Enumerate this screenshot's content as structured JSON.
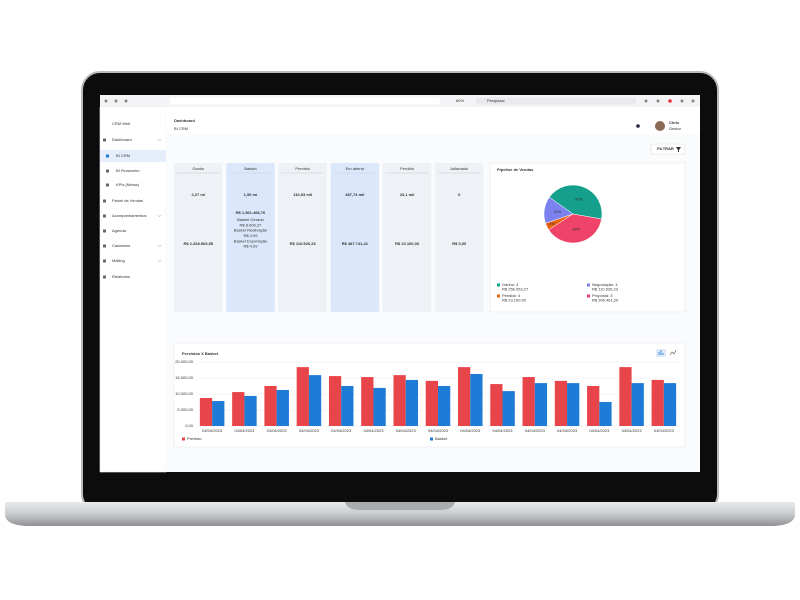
{
  "browser": {
    "zoom": "80%",
    "search": "Pesquisar"
  },
  "sidebar": {
    "brand": "CRM Web",
    "items": [
      "Dashboard",
      "BI CRM",
      "BI Financeiro",
      "KPIs (Metas)",
      "Painel de Vendas",
      "Acompanhamentos",
      "Agenda",
      "Cadastros",
      "Mailing",
      "Relatórios"
    ]
  },
  "header": {
    "title": "Dashboard",
    "subtitle": "BI CRM",
    "user": "Chris",
    "role": "Gestor"
  },
  "filter": "FILTRAR",
  "cards": [
    {
      "title": "Ganho",
      "value": "2,27 mi",
      "amount": "R$ 2.268.963,55",
      "color": "#14a08c",
      "highlight": false
    },
    {
      "title": "Basket",
      "value": "1,56 mi",
      "amount": "R$ 1.561.468,76",
      "color": "#1d74d0",
      "highlight": true,
      "details": [
        "Basket Gerado",
        "R$ 8.609,37",
        "Basket Reativação",
        "R$ 4,99",
        "Basket Exportação",
        "R$ 4,09"
      ]
    },
    {
      "title": "Previsto",
      "value": "110,53 mil",
      "amount": "R$ 110.526,23",
      "color": "#777",
      "highlight": false
    },
    {
      "title": "Em aberto",
      "value": "487,74 mil",
      "amount": "R$ 487.741,41",
      "color": "#122a5c",
      "highlight": true
    },
    {
      "title": "Perdido",
      "value": "23,1 mil",
      "amount": "R$ 23.100,00",
      "color": "#e8620f",
      "highlight": false
    },
    {
      "title": "Adiantado",
      "value": "0",
      "amount": "R$ 0,00",
      "color": "#aaa",
      "highlight": false
    }
  ],
  "chart_data": [
    {
      "type": "pie",
      "title": "Pipeline de Vendas",
      "categories": [
        "Ganho",
        "Negociação",
        "Perdido",
        "Proposta"
      ],
      "values": [
        43,
        15,
        4,
        38
      ],
      "value_labels": [
        "43%",
        "15%",
        "4%",
        "38%"
      ],
      "colors": [
        "#14a08c",
        "#7b82f0",
        "#e8620f",
        "#f0436a"
      ],
      "legend_labels": [
        "Ganho: 4",
        "Negociação: 4",
        "Perdido: 4",
        "Proposta: 3"
      ],
      "legend_amounts": [
        "R$ 256.053,27",
        "R$ 110.526,23",
        "R$ 23.100,00",
        "R$ 306.461,20"
      ]
    },
    {
      "type": "bar",
      "title": "Previstos X Basket",
      "categories": [
        "04/04/2023",
        "04/04/2023",
        "04/04/2023",
        "04/04/2023",
        "04/04/2023",
        "04/04/2023",
        "04/04/2023",
        "04/04/2023",
        "04/04/2023",
        "04/04/2023",
        "04/04/2023",
        "04/04/2023",
        "04/04/2023",
        "04/04/2023",
        "04/04/2023"
      ],
      "series": [
        {
          "name": "Previsto",
          "color": "#e8454a",
          "values": [
            8750,
            10600,
            12500,
            18400,
            15600,
            15300,
            15900,
            14100,
            18400,
            13100,
            15300,
            14100,
            12500,
            18400,
            14400
          ]
        },
        {
          "name": "Basket",
          "color": "#1e7bd6",
          "values": [
            7800,
            9400,
            11250,
            15900,
            12500,
            11900,
            14400,
            12500,
            16250,
            10900,
            13400,
            13400,
            7500,
            13400,
            13400
          ]
        }
      ],
      "ylim": [
        0,
        20000
      ],
      "yticks": [
        {
          "value": 0,
          "label": "0,00"
        },
        {
          "value": 5000,
          "label": "5.000,00"
        },
        {
          "value": 10000,
          "label": "10.000,00"
        },
        {
          "value": 15000,
          "label": "15.000,00"
        },
        {
          "value": 20000,
          "label": "20.000,00"
        }
      ],
      "grid": true
    }
  ]
}
